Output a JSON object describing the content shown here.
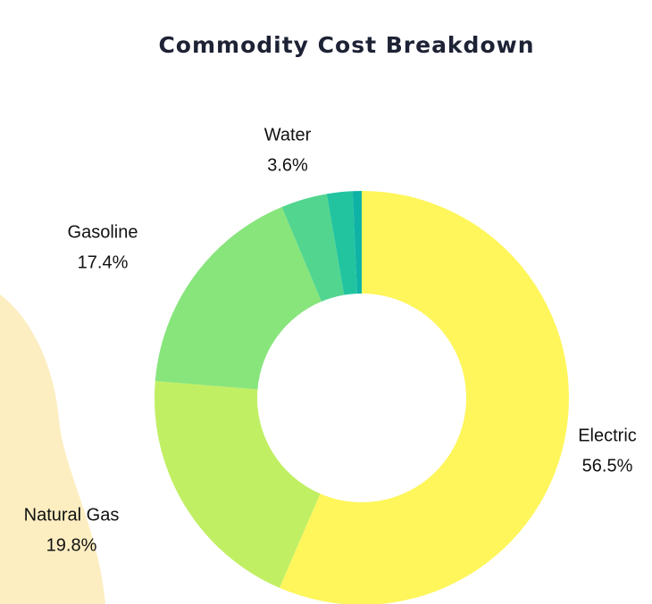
{
  "chart_data": {
    "type": "donut",
    "title": "Commodity Cost Breakdown",
    "categories": [
      "Electric",
      "Natural Gas",
      "Gasoline",
      "Water",
      null,
      null
    ],
    "values": [
      56.5,
      19.8,
      17.4,
      3.6,
      2.0,
      0.7
    ],
    "value_labels": [
      "56.5%",
      "19.8%",
      "17.4%",
      "3.6%",
      null,
      null
    ],
    "colors": [
      "#fef65b",
      "#c1ef64",
      "#88e57c",
      "#52d68f",
      "#22c4a0",
      "#0fb3a5"
    ]
  }
}
